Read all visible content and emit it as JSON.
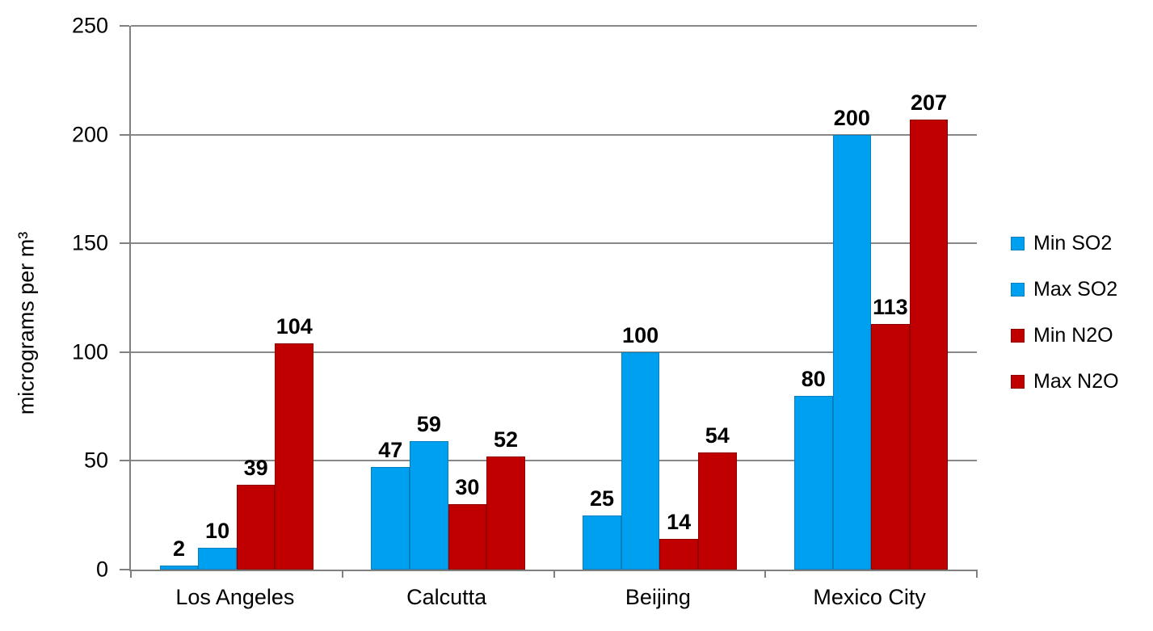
{
  "chart_data": {
    "type": "bar",
    "title": "",
    "xlabel": "",
    "ylabel": "micrograms per m³",
    "ylim": [
      0,
      250
    ],
    "yticks": [
      0,
      50,
      100,
      150,
      200,
      250
    ],
    "grid": true,
    "data_labels": true,
    "legend_position": "right",
    "categories": [
      "Los Angeles",
      "Calcutta",
      "Beijing",
      "Mexico City"
    ],
    "series": [
      {
        "name": "Min SO2",
        "color": "#00A0F0",
        "border_color": "#0880BE",
        "values": [
          2,
          47,
          25,
          80
        ]
      },
      {
        "name": "Max SO2",
        "color": "#00A0F0",
        "border_color": "#0880BE",
        "values": [
          10,
          59,
          100,
          200
        ]
      },
      {
        "name": "Min N2O",
        "color": "#C00000",
        "border_color": "#8F0000",
        "values": [
          39,
          30,
          14,
          113
        ]
      },
      {
        "name": "Max N2O",
        "color": "#C00000",
        "border_color": "#8F0000",
        "values": [
          104,
          52,
          54,
          207
        ]
      }
    ],
    "axis_color": "#808080",
    "gridline_color": "#888888",
    "background_color": "#FFFFFF"
  }
}
